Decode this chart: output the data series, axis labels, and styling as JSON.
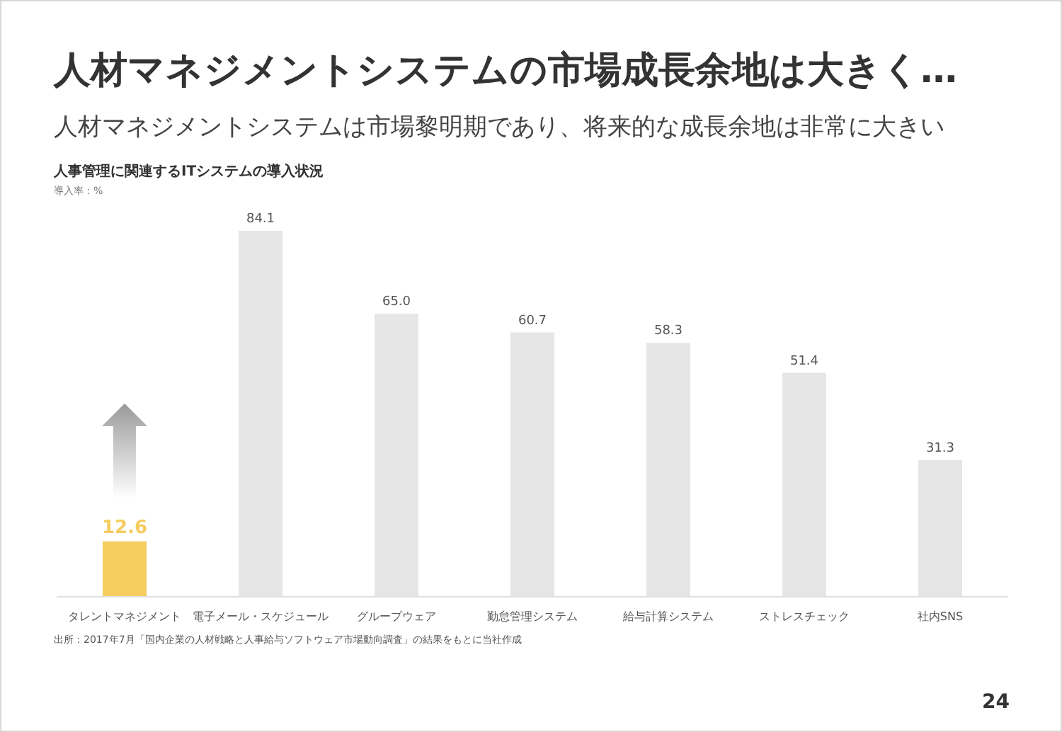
{
  "chart_data": {
    "type": "bar",
    "title": "人材マネジメントシステムの市場成長余地は大きく…",
    "subtitle": "人材マネジメントシステムは市場黎明期であり、将来的な成長余地は非常に大きい",
    "annotations": [
      "人事管理に関連するITシステムの導入状況",
      "出所：2017年7月「国内企業の人材戦略と人事給与ソフトウェア市場動向調査」の結果をもとに当社作成",
      "24"
    ],
    "ylabel": "導入率：%",
    "categories": [
      "タレントマネジメント",
      "電子メール・スケジュール",
      "グループウェア",
      "勤怠管理システム",
      "給与計算システム",
      "ストレスチェック",
      "社内SNS"
    ],
    "values": [
      12.6,
      84.1,
      65.0,
      60.7,
      58.3,
      51.4,
      31.3
    ],
    "value_labels": [
      "12.6",
      "84.1",
      "65.0",
      "60.7",
      "58.3",
      "51.4",
      "31.3"
    ],
    "colors": [
      "#f5cd5f",
      "#e6e6e6",
      "#e6e6e6",
      "#e6e6e6",
      "#e6e6e6",
      "#e6e6e6",
      "#e6e6e6"
    ]
  }
}
